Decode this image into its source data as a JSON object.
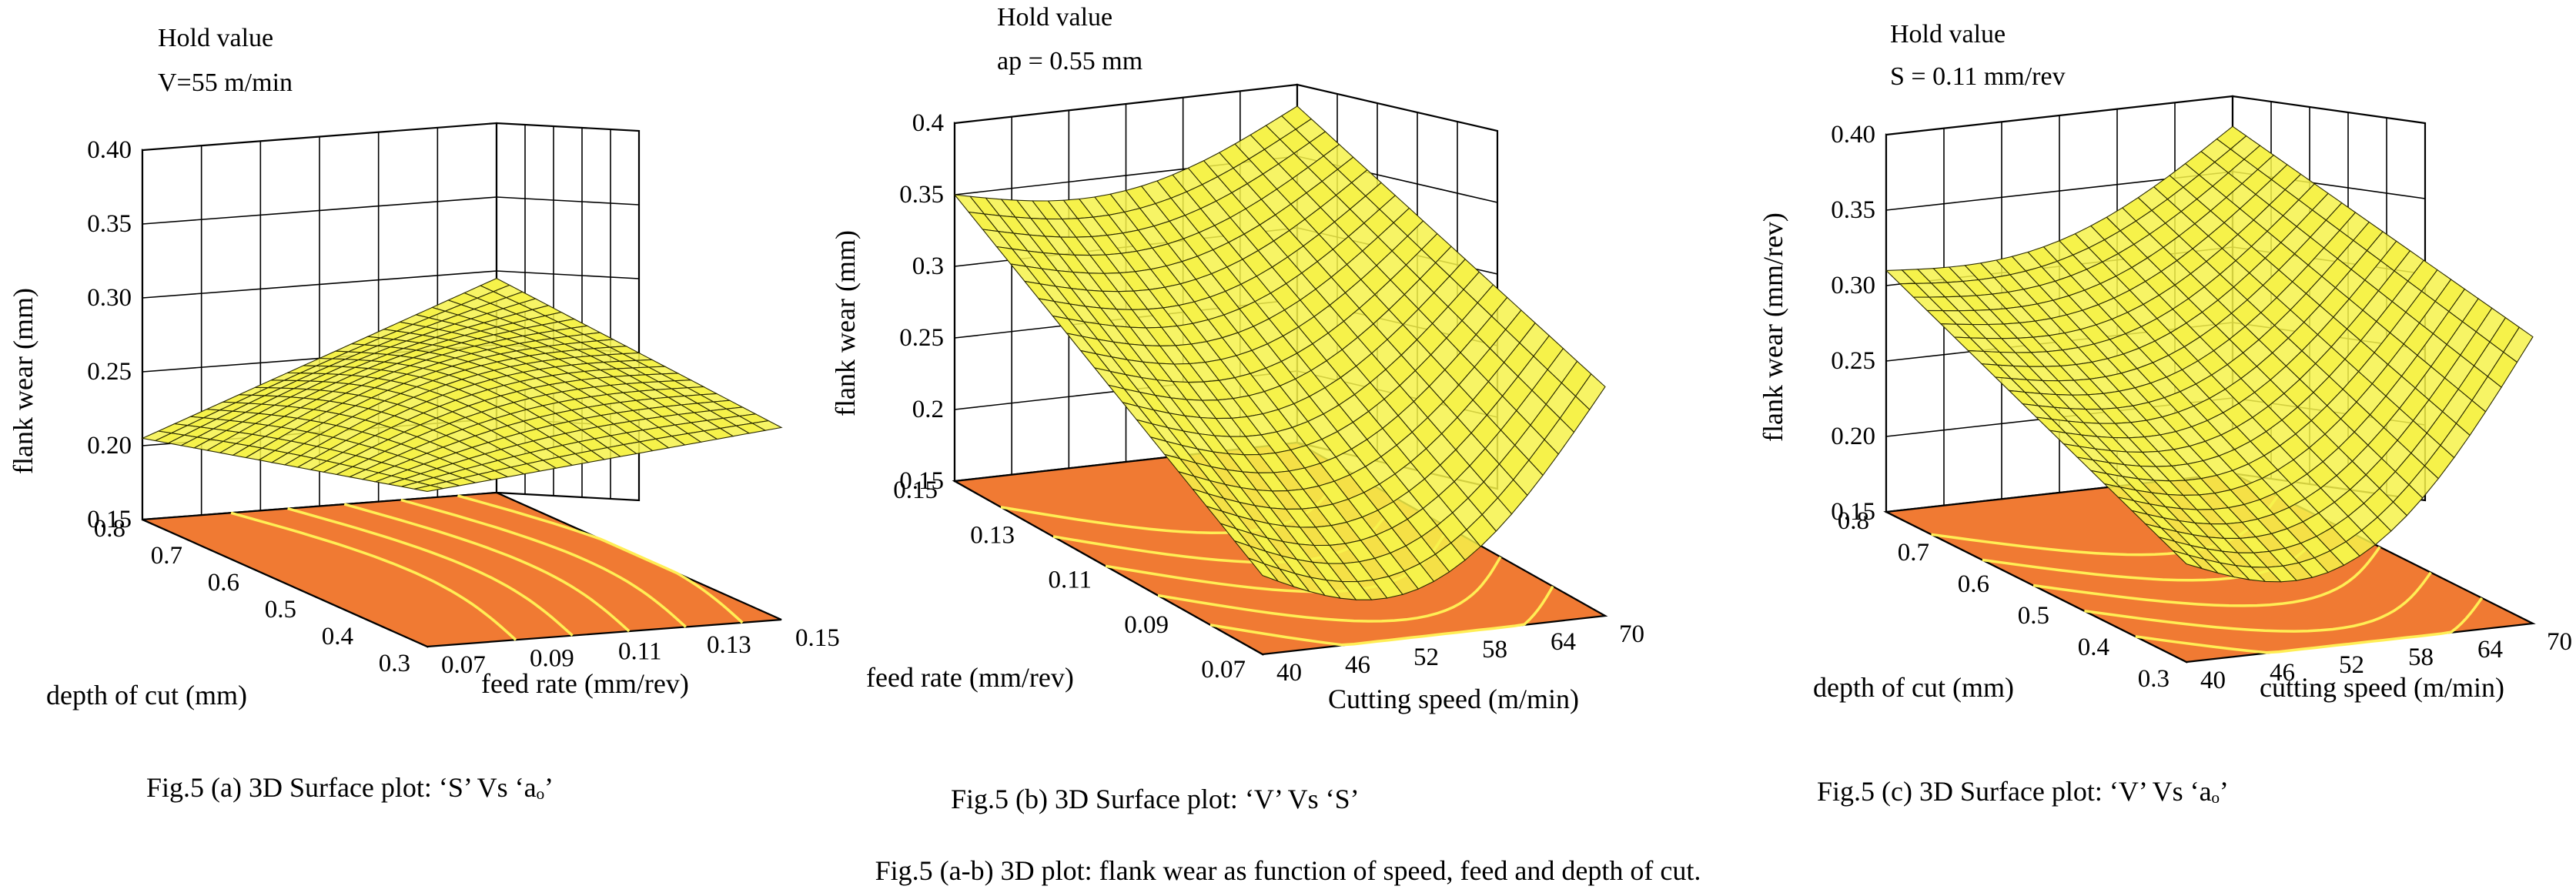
{
  "caption_main": "Fig.5 (a-b) 3D plot: flank wear as function of speed, feed and depth of cut.",
  "colors": {
    "surface_fill": "#f6f24a",
    "surface_mesh": "#2b2b00",
    "contour_floor": "#f07a33",
    "contour_line": "#ffee55",
    "grid": "#000000"
  },
  "chart_data": [
    {
      "type": "surface3d",
      "hold_label": "Hold value",
      "hold_value": "V=55 m/min",
      "caption": "Fig.5 (a) 3D Surface plot: ‘S’ Vs ‘aₒ’",
      "zlabel": "flank wear (mm)",
      "xlabel": "depth of cut (mm)",
      "ylabel": "feed rate (mm/rev)",
      "z_ticks": [
        "0.15",
        "0.20",
        "0.25",
        "0.30",
        "0.35",
        "0.40"
      ],
      "x_ticks": [
        "0.8",
        "0.7",
        "0.6",
        "0.5",
        "0.4",
        "0.3"
      ],
      "y_ticks": [
        "0.07",
        "0.09",
        "0.11",
        "0.13",
        "0.15"
      ],
      "zlim": [
        0.15,
        0.4
      ],
      "corners": {
        "depth_0.8_feed_0.07": 0.205,
        "depth_0.8_feed_0.15": 0.295,
        "depth_0.3_feed_0.07": 0.255,
        "depth_0.3_feed_0.15": 0.28
      }
    },
    {
      "type": "surface3d",
      "hold_label": "Hold value",
      "hold_value": "ap = 0.55 mm",
      "caption": "Fig.5 (b) 3D Surface plot: ‘V’ Vs ‘S’",
      "zlabel": "flank wear (mm)",
      "xlabel": "feed rate (mm/rev)",
      "ylabel": "Cutting speed (m/min)",
      "z_ticks": [
        "0.15",
        "0.2",
        "0.25",
        "0.3",
        "0.35",
        "0.4"
      ],
      "x_ticks": [
        "0.15",
        "0.13",
        "0.11",
        "0.09",
        "0.07"
      ],
      "y_ticks": [
        "40",
        "46",
        "52",
        "58",
        "64",
        "70"
      ],
      "zlim": [
        0.15,
        0.4
      ],
      "corners": {
        "feed_0.15_speed_40": 0.35,
        "feed_0.15_speed_70": 0.385,
        "feed_0.07_speed_40": 0.205,
        "feed_0.07_speed_70": 0.31
      }
    },
    {
      "type": "surface3d",
      "hold_label": "Hold value",
      "hold_value": "S = 0.11 mm/rev",
      "caption": "Fig.5 (c) 3D Surface plot: ‘V’ Vs ‘aₒ’",
      "zlabel": "flank wear (mm/rev)",
      "xlabel": "depth of cut (mm)",
      "ylabel": "cutting speed (m/min)",
      "z_ticks": [
        "0.15",
        "0.20",
        "0.25",
        "0.30",
        "0.35",
        "0.40"
      ],
      "x_ticks": [
        "0.8",
        "0.7",
        "0.6",
        "0.5",
        "0.4",
        "0.3"
      ],
      "y_ticks": [
        "40",
        "46",
        "52",
        "58",
        "64",
        "70"
      ],
      "zlim": [
        0.15,
        0.4
      ],
      "corners": {
        "depth_0.8_speed_40": 0.31,
        "depth_0.8_speed_70": 0.38,
        "depth_0.3_speed_40": 0.215,
        "depth_0.3_speed_70": 0.34
      }
    }
  ]
}
